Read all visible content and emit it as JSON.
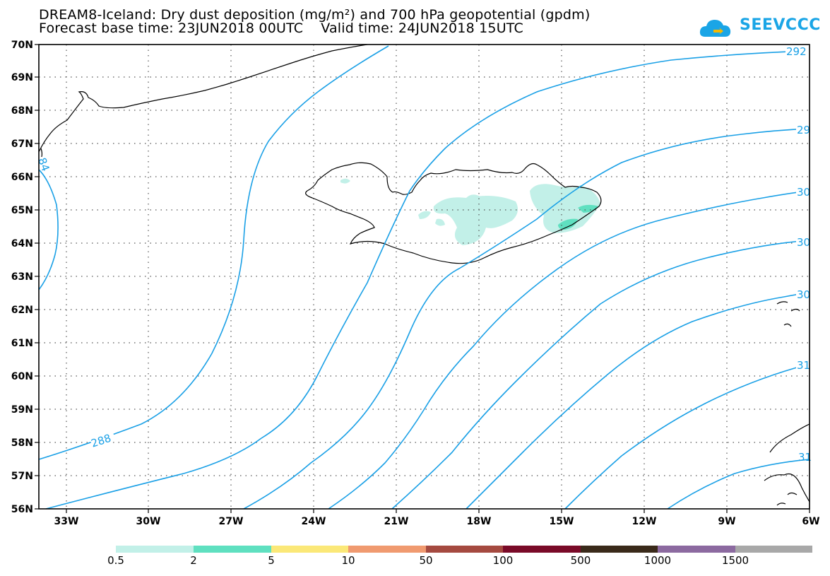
{
  "title_line1": "DREAM8-Iceland: Dry dust deposition (mg/m²) and 700 hPa geopotential (gpdm)",
  "title_line2": "Forecast base time: 23JUN2018 00UTC    Valid time: 24JUN2018 15UTC",
  "logo": {
    "text": "SEEVCCC",
    "icon": "cloud-icon"
  },
  "colors": {
    "contour": "#1aa0e6",
    "coast": "#000000",
    "grid": "#555555",
    "dust_low": "#c2f0e8",
    "dust_mid": "#5fe0c0"
  },
  "map": {
    "lon_labels": [
      "33W",
      "30W",
      "27W",
      "24W",
      "21W",
      "18W",
      "15W",
      "12W",
      "9W",
      "6W"
    ],
    "lat_labels": [
      "56N",
      "57N",
      "58N",
      "59N",
      "60N",
      "61N",
      "62N",
      "63N",
      "64N",
      "65N",
      "66N",
      "67N",
      "68N",
      "69N",
      "70N"
    ],
    "contour_labels": [
      "292",
      "29",
      "30",
      "30",
      "30",
      "31",
      "288",
      "84",
      "31"
    ]
  },
  "colorbar": {
    "labels": [
      "0.5",
      "2",
      "5",
      "10",
      "50",
      "100",
      "500",
      "1000",
      "1500"
    ],
    "colors": [
      "#c2f0e8",
      "#5fe0c0",
      "#fbe878",
      "#f09a70",
      "#a54a40",
      "#7a0a28",
      "#3a2a1a",
      "#8c6aa0",
      "#a8a8a8"
    ]
  }
}
